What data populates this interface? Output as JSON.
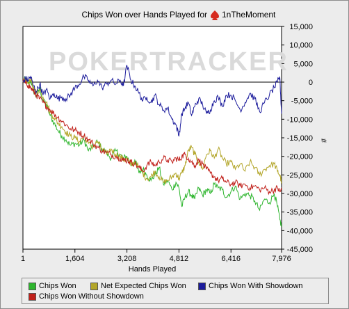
{
  "chart_data": {
    "type": "line",
    "title_prefix": "Chips Won over Hands Played for",
    "player": "1nTheMoment",
    "watermark": "POKERTRACKER",
    "xlabel": "Hands Played",
    "ylabel": "#",
    "xlim": [
      1,
      7976
    ],
    "ylim": [
      -45000,
      15000
    ],
    "x_ticks": [
      1,
      1604,
      3208,
      4812,
      6416,
      7976
    ],
    "x_tick_labels": [
      "1",
      "1,604",
      "3,208",
      "4,812",
      "6,416",
      "7,976"
    ],
    "y_ticks": [
      15000,
      10000,
      5000,
      0,
      -5000,
      -10000,
      -15000,
      -20000,
      -25000,
      -30000,
      -35000,
      -40000,
      -45000
    ],
    "y_tick_labels": [
      "15,000",
      "10,000",
      "5,000",
      "0",
      "-5,000",
      "-10,000",
      "-15,000",
      "-20,000",
      "-25,000",
      "-30,000",
      "-35,000",
      "-40,000",
      "-45,000"
    ],
    "grid": false,
    "zero_line": true,
    "legend_position": "bottom",
    "series": [
      {
        "name": "Chips Won",
        "color": "#2db52d",
        "x": [
          1,
          80,
          160,
          240,
          320,
          420,
          520,
          620,
          720,
          840,
          960,
          1080,
          1200,
          1330,
          1460,
          1604,
          1740,
          1880,
          2020,
          2160,
          2300,
          2440,
          2580,
          2720,
          2860,
          3000,
          3100,
          3208,
          3330,
          3450,
          3580,
          3700,
          3820,
          3950,
          4070,
          4200,
          4330,
          4460,
          4600,
          4720,
          4812,
          4900,
          5000,
          5100,
          5200,
          5300,
          5420,
          5540,
          5660,
          5780,
          5900,
          6020,
          6150,
          6270,
          6416,
          6550,
          6700,
          6850,
          7000,
          7150,
          7300,
          7450,
          7600,
          7750,
          7850,
          7920,
          7976
        ],
        "values": [
          0,
          1000,
          -500,
          500,
          -2000,
          -4000,
          -1500,
          -5000,
          -6000,
          -9000,
          -11000,
          -13000,
          -14500,
          -15500,
          -17000,
          -16500,
          -17000,
          -15500,
          -18500,
          -17500,
          -16000,
          -18000,
          -19000,
          -20500,
          -18500,
          -19500,
          -20500,
          -20000,
          -22500,
          -21000,
          -24500,
          -23500,
          -25000,
          -26500,
          -25000,
          -23000,
          -27500,
          -26500,
          -29000,
          -27000,
          -28500,
          -33500,
          -31000,
          -29500,
          -30500,
          -31500,
          -28500,
          -30500,
          -29000,
          -30000,
          -27500,
          -28500,
          -29000,
          -31000,
          -29500,
          -28000,
          -31500,
          -30000,
          -30500,
          -32000,
          -34500,
          -31500,
          -32500,
          -30000,
          -33500,
          -37000,
          -39000
        ]
      },
      {
        "name": "Net Expected Chips Won",
        "color": "#b3a62a",
        "x": [
          1,
          80,
          160,
          240,
          320,
          420,
          520,
          620,
          720,
          840,
          960,
          1080,
          1200,
          1330,
          1460,
          1604,
          1740,
          1880,
          2020,
          2160,
          2300,
          2440,
          2580,
          2720,
          2860,
          3000,
          3100,
          3208,
          3330,
          3450,
          3580,
          3700,
          3820,
          3950,
          4070,
          4200,
          4330,
          4460,
          4600,
          4720,
          4812,
          4900,
          5000,
          5100,
          5200,
          5300,
          5420,
          5540,
          5660,
          5780,
          5900,
          6020,
          6150,
          6270,
          6416,
          6550,
          6700,
          6850,
          7000,
          7150,
          7300,
          7450,
          7600,
          7750,
          7850,
          7920,
          7976
        ],
        "values": [
          0,
          800,
          -300,
          400,
          -1500,
          -3000,
          -2000,
          -4000,
          -5500,
          -8000,
          -9500,
          -11000,
          -12000,
          -13500,
          -14500,
          -15000,
          -16000,
          -14500,
          -16500,
          -17500,
          -16000,
          -18000,
          -19500,
          -18000,
          -19500,
          -20000,
          -21000,
          -20500,
          -22500,
          -21500,
          -23000,
          -24500,
          -26000,
          -25500,
          -24000,
          -25500,
          -27000,
          -26500,
          -25500,
          -24500,
          -26000,
          -24500,
          -22500,
          -18500,
          -17500,
          -19500,
          -21500,
          -23500,
          -19500,
          -18500,
          -20500,
          -18000,
          -20500,
          -22000,
          -21500,
          -23500,
          -22000,
          -24000,
          -21500,
          -23000,
          -25000,
          -23500,
          -22500,
          -22000,
          -24000,
          -25000,
          -27000
        ]
      },
      {
        "name": "Chips Won Without Showdown",
        "color": "#c0201a",
        "x": [
          1,
          80,
          160,
          240,
          320,
          420,
          520,
          620,
          720,
          840,
          960,
          1080,
          1200,
          1330,
          1460,
          1604,
          1740,
          1880,
          2020,
          2160,
          2300,
          2440,
          2580,
          2720,
          2860,
          3000,
          3100,
          3208,
          3330,
          3450,
          3580,
          3700,
          3820,
          3950,
          4070,
          4200,
          4330,
          4460,
          4600,
          4720,
          4812,
          4900,
          5000,
          5100,
          5200,
          5300,
          5420,
          5540,
          5660,
          5780,
          5900,
          6020,
          6150,
          6270,
          6416,
          6550,
          6700,
          6850,
          7000,
          7150,
          7300,
          7450,
          7600,
          7750,
          7850,
          7920,
          7976
        ],
        "values": [
          0,
          -300,
          -800,
          -1500,
          -2500,
          -3500,
          -4500,
          -5500,
          -6500,
          -7500,
          -8500,
          -9500,
          -10500,
          -11500,
          -12500,
          -13000,
          -13500,
          -14500,
          -15500,
          -16500,
          -17500,
          -18500,
          -19000,
          -19500,
          -20000,
          -20500,
          -21000,
          -21000,
          -21500,
          -22000,
          -23000,
          -24000,
          -22500,
          -21500,
          -22500,
          -21500,
          -20500,
          -21000,
          -21500,
          -20500,
          -21000,
          -20000,
          -19500,
          -20500,
          -21500,
          -22500,
          -21000,
          -22000,
          -23500,
          -24500,
          -25500,
          -26500,
          -26000,
          -27000,
          -27500,
          -27000,
          -28000,
          -27500,
          -28500,
          -28000,
          -29000,
          -28500,
          -29500,
          -29000,
          -28500,
          -29500,
          -29000
        ]
      },
      {
        "name": "Chips Won With Showdown",
        "color": "#1c1c9c",
        "x": [
          1,
          80,
          160,
          240,
          320,
          420,
          520,
          620,
          720,
          840,
          960,
          1080,
          1200,
          1330,
          1460,
          1604,
          1740,
          1880,
          2020,
          2160,
          2300,
          2440,
          2580,
          2720,
          2860,
          3000,
          3100,
          3208,
          3330,
          3450,
          3580,
          3700,
          3820,
          3950,
          4070,
          4200,
          4330,
          4460,
          4600,
          4720,
          4812,
          4900,
          5000,
          5100,
          5200,
          5300,
          5420,
          5540,
          5660,
          5780,
          5900,
          6020,
          6150,
          6270,
          6416,
          6550,
          6700,
          6850,
          7000,
          7150,
          7300,
          7450,
          7600,
          7750,
          7850,
          7920,
          7976
        ],
        "values": [
          0,
          1000,
          500,
          1500,
          -1000,
          -2500,
          -500,
          -3500,
          -2000,
          -4500,
          -3000,
          -4500,
          -4000,
          -4500,
          -3500,
          -1500,
          -500,
          1500,
          500,
          -1000,
          500,
          -1500,
          -500,
          500,
          -500,
          500,
          -1000,
          4500,
          500,
          -1000,
          -3000,
          -5000,
          -4000,
          -5500,
          -3500,
          -6000,
          -7500,
          -7000,
          -10000,
          -11500,
          -14500,
          -8500,
          -7000,
          -5500,
          -9000,
          -6500,
          -4500,
          -6000,
          -8500,
          -7500,
          -5000,
          -4000,
          -6500,
          -3500,
          -3500,
          -5000,
          -7500,
          -5500,
          -3000,
          -4500,
          -8000,
          -5500,
          -3500,
          -1500,
          0,
          1500,
          -8500
        ]
      }
    ]
  }
}
